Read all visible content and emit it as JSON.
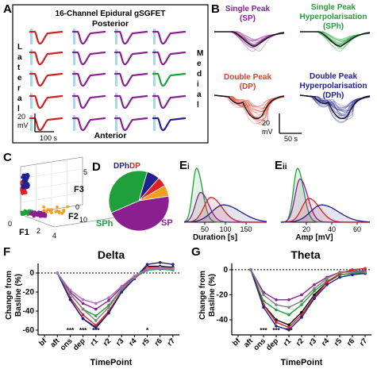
{
  "panel_letters": {
    "A": "A",
    "B": "B",
    "C": "C",
    "D": "D",
    "Ei": "Ei",
    "Eii": "Eii",
    "F": "F",
    "G": "G"
  },
  "panel_a": {
    "title": "16-Channel Epidural gSGFET",
    "posterior": "Posterior",
    "anterior": "Anterior",
    "lateral": "Lateral",
    "medial": "Medial",
    "scale_v": "20 mV",
    "scale_t": "100 s",
    "grid_colors": [
      [
        "#d21f1f",
        "#8b1f8f",
        "#8b1f8f",
        "#8b1f8f"
      ],
      [
        "#d21f1f",
        "#8b1f8f",
        "#8b1f8f",
        "#8b1f8f"
      ],
      [
        "#d21f1f",
        "#8b1f8f",
        "#8b1f8f",
        "#1fa03a"
      ],
      [
        "#d21f1f",
        "#8b1f8f",
        "#8b1f8f",
        "#8b1f8f"
      ],
      [
        "#d21f1f",
        "#8b1f8f",
        "#8b1f8f",
        "#20208f"
      ]
    ]
  },
  "panel_b": {
    "sp_label": "Single Peak (SP)",
    "sph_label": "Single Peak Hyperpolarisation (SPh)",
    "dp_label": "Double Peak (DP)",
    "dph_label": "Double Peak Hyperpolarisation (DPh)",
    "scale_v": "20 mV",
    "scale_t": "50 s",
    "colors": {
      "sp": "#8b1f8f",
      "sph": "#1fa03a",
      "dp": "#e03a2a",
      "dph": "#20208f"
    }
  },
  "panel_c": {
    "x_label": "F1",
    "y_label": "F2",
    "z_label": "F3",
    "x_ticks": [
      "0",
      "2",
      "4"
    ],
    "y_ticks": [
      "0",
      "10"
    ],
    "z_ticks": [
      "5"
    ]
  },
  "chart_data": [
    {
      "type": "pie",
      "panel": "D",
      "labels": [
        "SP",
        "SPh",
        "DPh",
        "DP",
        ""
      ],
      "values": [
        46,
        36,
        7,
        5,
        6
      ],
      "colors": [
        "#8b1f8f",
        "#1fa03a",
        "#20208f",
        "#e02020",
        "#f0a01e"
      ]
    },
    {
      "type": "area",
      "panel": "Ei",
      "xlabel": "Duration [s]",
      "xlim": [
        0,
        200
      ],
      "x_ticks": [
        50,
        100,
        150
      ],
      "series": [
        {
          "color": "#1fa03a",
          "peak_x": 30,
          "width": 12,
          "peak_h": 1.0
        },
        {
          "color": "#8b1f8f",
          "peak_x": 40,
          "width": 16,
          "peak_h": 0.55
        },
        {
          "color": "#e02020",
          "peak_x": 65,
          "width": 22,
          "peak_h": 0.46
        },
        {
          "color": "#20208f",
          "peak_x": 95,
          "width": 35,
          "peak_h": 0.32
        }
      ]
    },
    {
      "type": "area",
      "panel": "Eii",
      "xlabel": "Amp [mV]",
      "xlim": [
        0,
        70
      ],
      "x_ticks": [
        20,
        40,
        60
      ],
      "series": [
        {
          "color": "#1fa03a",
          "peak_x": 13,
          "width": 4,
          "peak_h": 1.0
        },
        {
          "color": "#8b1f8f",
          "peak_x": 15,
          "width": 5,
          "peak_h": 0.8
        },
        {
          "color": "#e02020",
          "peak_x": 22,
          "width": 7,
          "peak_h": 0.44
        },
        {
          "color": "#20208f",
          "peak_x": 32,
          "width": 11,
          "peak_h": 0.32
        }
      ]
    },
    {
      "type": "line",
      "panel": "F",
      "title": "Delta",
      "xlabel": "TimePoint",
      "ylabel": "Change from Basline (%)",
      "categories": [
        "bf",
        "aft",
        "ons",
        "dep",
        "r1",
        "r2",
        "r3",
        "r4",
        "r5",
        "r6",
        "r7"
      ],
      "ylim": [
        -65,
        10
      ],
      "y_ticks": [
        0,
        -20,
        -40,
        -60
      ],
      "significance": [
        "",
        "",
        "***",
        "***",
        "***",
        "",
        "",
        "",
        "*",
        "",
        ""
      ],
      "series": [
        {
          "color": "#000000",
          "values": [
            null,
            0,
            -28,
            -48,
            -57,
            -42,
            -20,
            -6,
            7,
            7,
            6
          ]
        },
        {
          "color": "#8b1f8f",
          "values": [
            null,
            0,
            -20,
            -32,
            -38,
            -29,
            -15,
            -4,
            5,
            6,
            4
          ]
        },
        {
          "color": "#1fa03a",
          "values": [
            null,
            0,
            -22,
            -38,
            -45,
            -34,
            -17,
            -5,
            3,
            4,
            3
          ]
        },
        {
          "color": "#e02020",
          "values": [
            null,
            0,
            -26,
            -44,
            -55,
            -40,
            -19,
            -6,
            6,
            6,
            5
          ]
        },
        {
          "color": "#20208f",
          "values": [
            null,
            0,
            -28,
            -48,
            -58,
            -42,
            -20,
            -6,
            9,
            11,
            9
          ]
        },
        {
          "color": "#808080",
          "values": [
            null,
            0,
            -22,
            -38,
            -50,
            -36,
            -17,
            -5,
            5,
            6,
            5
          ]
        },
        {
          "color": "#b070c0",
          "values": [
            null,
            0,
            -18,
            -28,
            -32,
            -26,
            -14,
            -3,
            4,
            5,
            4
          ]
        }
      ]
    },
    {
      "type": "line",
      "panel": "G",
      "title": "Theta",
      "xlabel": "TimePoint",
      "ylabel": "Change from Basline (%)",
      "categories": [
        "bf",
        "aft",
        "ons",
        "dep",
        "r1",
        "r2",
        "r3",
        "r4",
        "r5",
        "r6",
        "r7"
      ],
      "ylim": [
        -52,
        5
      ],
      "y_ticks": [
        0,
        -20,
        -40
      ],
      "significance": [
        "",
        "",
        "***",
        "***",
        "***",
        "",
        "",
        "",
        "",
        "",
        ""
      ],
      "series": [
        {
          "color": "#000000",
          "values": [
            null,
            0,
            -28,
            -40,
            -44,
            -34,
            -20,
            -10,
            -4,
            -3,
            -2
          ]
        },
        {
          "color": "#8b1f8f",
          "values": [
            null,
            0,
            -18,
            -24,
            -24,
            -20,
            -12,
            -6,
            -2,
            -1,
            -1
          ]
        },
        {
          "color": "#1fa03a",
          "values": [
            null,
            0,
            -25,
            -32,
            -36,
            -28,
            -17,
            -9,
            -4,
            -3,
            -3
          ]
        },
        {
          "color": "#e02020",
          "values": [
            null,
            0,
            -28,
            -42,
            -46,
            -36,
            -22,
            -10,
            -3,
            0,
            1
          ]
        },
        {
          "color": "#20208f",
          "values": [
            null,
            0,
            -30,
            -45,
            -48,
            -38,
            -23,
            -12,
            -6,
            -4,
            -3
          ]
        },
        {
          "color": "#808080",
          "values": [
            null,
            0,
            -20,
            -28,
            -30,
            -25,
            -15,
            -7,
            -2,
            -2,
            -2
          ]
        }
      ]
    }
  ]
}
